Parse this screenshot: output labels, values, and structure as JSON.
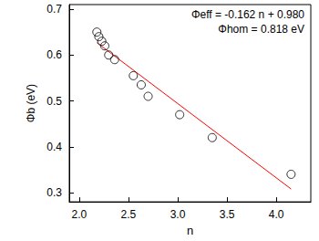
{
  "chart_data": {
    "type": "scatter",
    "x_label": "n",
    "y_label": "Φb (eV)",
    "annotations": [
      "Φeff = -0.162 n + 0.980",
      "Φhom = 0.818 eV"
    ],
    "xlim": [
      1.9,
      4.35
    ],
    "ylim": [
      0.28,
      0.71
    ],
    "xticks": [
      {
        "value": 2.0,
        "label": "2.0"
      },
      {
        "value": 2.5,
        "label": "2.5"
      },
      {
        "value": 3.0,
        "label": "3.0"
      },
      {
        "value": 3.5,
        "label": "3.5"
      },
      {
        "value": 4.0,
        "label": "4.0"
      }
    ],
    "yticks": [
      0.3,
      0.4,
      0.5,
      0.6,
      0.7
    ],
    "grid": false,
    "series": [
      {
        "type": "scatter",
        "marker": "circle",
        "color": "#000000",
        "x": [
          2.18,
          2.2,
          2.23,
          2.26,
          2.3,
          2.36,
          2.55,
          2.63,
          2.7,
          3.02,
          3.35,
          4.15
        ],
        "values": [
          0.65,
          0.64,
          0.63,
          0.62,
          0.6,
          0.59,
          0.555,
          0.535,
          0.51,
          0.47,
          0.42,
          0.34
        ]
      },
      {
        "type": "line",
        "color": "#ff0000",
        "x": [
          2.18,
          4.15
        ],
        "values": [
          0.627,
          0.308
        ]
      }
    ]
  }
}
